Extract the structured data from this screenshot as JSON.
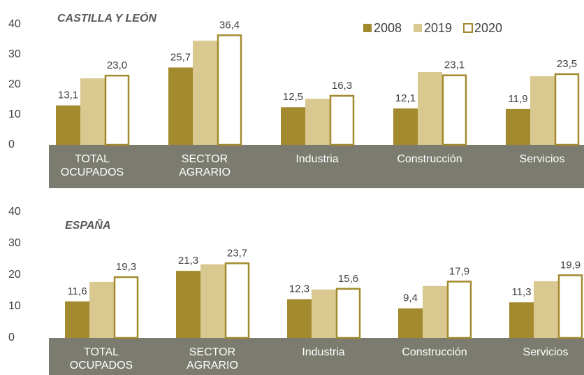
{
  "chart_data": [
    {
      "type": "bar",
      "title": "CASTILLA Y LEÓN",
      "categories": [
        "TOTAL OCUPADOS",
        "SECTOR AGRARIO",
        "Industria",
        "Construcción",
        "Servicios"
      ],
      "series": [
        {
          "name": "2008",
          "color": "#a38a2e",
          "values": [
            13.1,
            25.7,
            12.5,
            12.1,
            11.9
          ],
          "value_labels": [
            "13,1",
            "25,7",
            "12,5",
            "12,1",
            "11,9"
          ]
        },
        {
          "name": "2019",
          "color": "#d9c88f",
          "values": [
            22.1,
            34.6,
            15.3,
            24.2,
            22.8
          ]
        },
        {
          "name": "2020",
          "color": "#ffffff",
          "values": [
            23.0,
            36.4,
            16.3,
            23.1,
            23.5
          ],
          "value_labels": [
            "23,0",
            "36,4",
            "16,3",
            "23,1",
            "23,5"
          ]
        }
      ],
      "ylim": [
        0,
        40
      ],
      "yticks": [
        0,
        10,
        20,
        30,
        40
      ],
      "legend": "top-right"
    },
    {
      "type": "bar",
      "title": "ESPAÑA",
      "categories": [
        "TOTAL OCUPADOS",
        "SECTOR AGRARIO",
        "Industria",
        "Construcción",
        "Servicios"
      ],
      "series": [
        {
          "name": "2008",
          "color": "#a38a2e",
          "values": [
            11.6,
            21.3,
            12.3,
            9.4,
            11.3
          ],
          "value_labels": [
            "11,6",
            "21,3",
            "12,3",
            "9,4",
            "11,3"
          ]
        },
        {
          "name": "2019",
          "color": "#d9c88f",
          "values": [
            17.8,
            23.4,
            15.4,
            16.5,
            18.0
          ]
        },
        {
          "name": "2020",
          "color": "#ffffff",
          "values": [
            19.3,
            23.7,
            15.6,
            17.9,
            19.9
          ],
          "value_labels": [
            "19,3",
            "23,7",
            "15,6",
            "17,9",
            "19,9"
          ]
        }
      ],
      "ylim": [
        0,
        40
      ],
      "yticks": [
        0,
        10,
        20,
        30,
        40
      ]
    }
  ]
}
